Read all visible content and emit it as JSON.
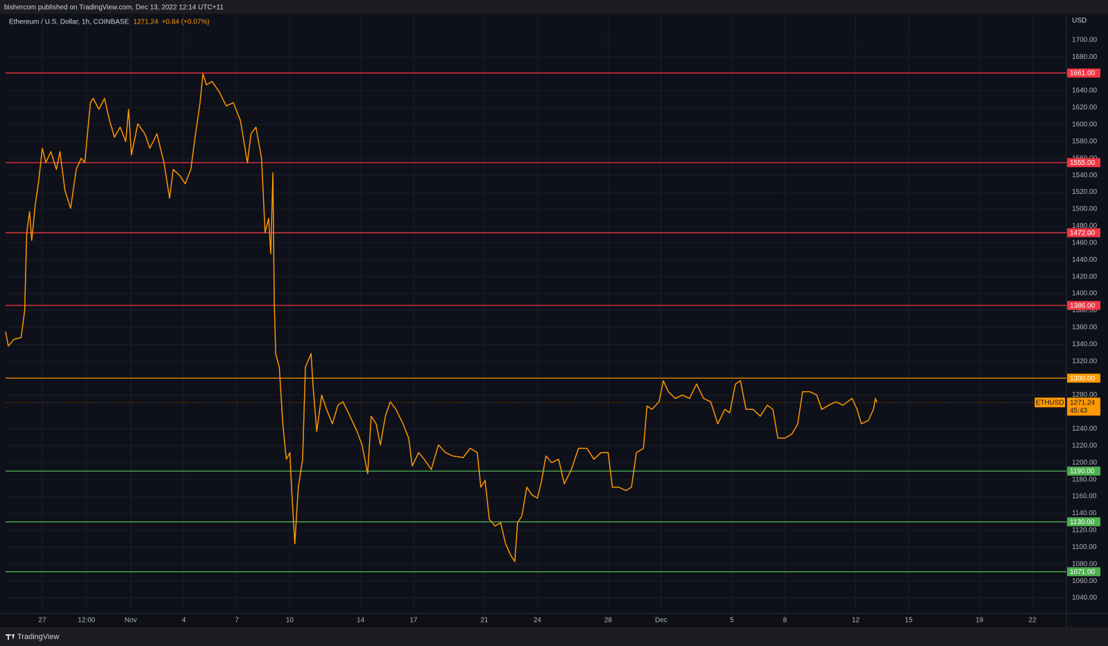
{
  "chart_data": {
    "type": "line",
    "published": "bishercom published on TradingView.com, Dec 13, 2022 12:14 UTC+11",
    "title": "Ethereum / U.S. Dollar, 1h, COINBASE",
    "last": 1271.24,
    "change": "+0.84 (+0.07%)",
    "symbol": "ETHUSD",
    "countdown": "45:43",
    "currency": "USD",
    "brand": "TradingView",
    "grid": true,
    "xlim": [
      -2.08,
      57.92
    ],
    "ylim": [
      1021.6,
      1731
    ],
    "xticks": [
      {
        "value": 0,
        "label": "27"
      },
      {
        "value": 2.5,
        "label": "12:00"
      },
      {
        "value": 5,
        "label": "Nov"
      },
      {
        "value": 8,
        "label": "4"
      },
      {
        "value": 11,
        "label": "7"
      },
      {
        "value": 14,
        "label": "10"
      },
      {
        "value": 18,
        "label": "14"
      },
      {
        "value": 21,
        "label": "17"
      },
      {
        "value": 25,
        "label": "21"
      },
      {
        "value": 28,
        "label": "24"
      },
      {
        "value": 32,
        "label": "28"
      },
      {
        "value": 35,
        "label": "Dec"
      },
      {
        "value": 39,
        "label": "5"
      },
      {
        "value": 42,
        "label": "8"
      },
      {
        "value": 46,
        "label": "12"
      },
      {
        "value": 49,
        "label": "15"
      },
      {
        "value": 53,
        "label": "19"
      },
      {
        "value": 56,
        "label": "22"
      }
    ],
    "yticks": [
      {
        "value": 1700,
        "label": "1700.00"
      },
      {
        "value": 1680,
        "label": "1680.00"
      },
      {
        "value": 1640,
        "label": "1640.00"
      },
      {
        "value": 1620,
        "label": "1620.00"
      },
      {
        "value": 1600,
        "label": "1600.00"
      },
      {
        "value": 1580,
        "label": "1580.00"
      },
      {
        "value": 1560,
        "label": "1560.00"
      },
      {
        "value": 1540,
        "label": "1540.00"
      },
      {
        "value": 1520,
        "label": "1520.00"
      },
      {
        "value": 1500,
        "label": "1500.00"
      },
      {
        "value": 1480,
        "label": "1480.00"
      },
      {
        "value": 1460,
        "label": "1460.00"
      },
      {
        "value": 1440,
        "label": "1440.00"
      },
      {
        "value": 1420,
        "label": "1420.00"
      },
      {
        "value": 1400,
        "label": "1400.00"
      },
      {
        "value": 1380,
        "label": "1380.00"
      },
      {
        "value": 1360,
        "label": "1360.00"
      },
      {
        "value": 1340,
        "label": "1340.00"
      },
      {
        "value": 1320,
        "label": "1320.00"
      },
      {
        "value": 1280,
        "label": "1280.00"
      },
      {
        "value": 1240,
        "label": "1240.00"
      },
      {
        "value": 1220,
        "label": "1220.00"
      },
      {
        "value": 1200,
        "label": "1200.00"
      },
      {
        "value": 1180,
        "label": "1180.00"
      },
      {
        "value": 1160,
        "label": "1160.00"
      },
      {
        "value": 1140,
        "label": "1140.00"
      },
      {
        "value": 1120,
        "label": "1120.00"
      },
      {
        "value": 1100,
        "label": "1100.00"
      },
      {
        "value": 1080,
        "label": "1080.00"
      },
      {
        "value": 1060,
        "label": "1060.00"
      },
      {
        "value": 1040,
        "label": "1040.00"
      }
    ],
    "levels": [
      {
        "value": 1661,
        "label": "1661.00",
        "color": "#f23645"
      },
      {
        "value": 1555,
        "label": "1555.00",
        "color": "#f23645"
      },
      {
        "value": 1472,
        "label": "1472.00",
        "color": "#f23645"
      },
      {
        "value": 1386,
        "label": "1386.00",
        "color": "#f23645"
      },
      {
        "value": 1300,
        "label": "1300.00",
        "color": "#ff9800"
      },
      {
        "value": 1190,
        "label": "1190.00",
        "color": "#4caf50"
      },
      {
        "value": 1130,
        "label": "1130.00",
        "color": "#4caf50"
      },
      {
        "value": 1071,
        "label": "1071.00",
        "color": "#4caf50"
      }
    ],
    "x": [
      -2.08,
      -1.92,
      -1.6,
      -1.2,
      -1,
      -0.88,
      -0.72,
      -0.6,
      -0.4,
      -0.2,
      0,
      0.2,
      0.48,
      0.8,
      1,
      1.28,
      1.6,
      1.92,
      2.2,
      2.4,
      2.72,
      2.88,
      3.2,
      3.52,
      3.8,
      4.08,
      4.4,
      4.72,
      4.88,
      5.04,
      5.4,
      5.8,
      6.08,
      6.48,
      6.88,
      7.2,
      7.4,
      7.8,
      8.08,
      8.4,
      8.64,
      8.92,
      9.08,
      9.28,
      9.6,
      10,
      10.4,
      10.8,
      11.2,
      11.6,
      11.8,
      12.08,
      12.4,
      12.6,
      12.8,
      12.92,
      13.04,
      13.12,
      13.2,
      13.4,
      13.6,
      13.8,
      14,
      14.12,
      14.28,
      14.48,
      14.72,
      14.88,
      15.04,
      15.2,
      15.32,
      15.52,
      15.8,
      16.08,
      16.4,
      16.72,
      17,
      17.4,
      17.8,
      18.08,
      18.4,
      18.6,
      18.88,
      19.12,
      19.4,
      19.68,
      20,
      20.4,
      20.72,
      20.92,
      21.28,
      21.6,
      22,
      22.4,
      22.8,
      23.2,
      23.8,
      24.2,
      24.6,
      24.8,
      25.04,
      25.28,
      25.6,
      25.92,
      26.2,
      26.48,
      26.72,
      26.88,
      27.12,
      27.4,
      27.68,
      28,
      28.24,
      28.48,
      28.8,
      29.2,
      29.52,
      29.92,
      30.32,
      30.8,
      31.2,
      31.6,
      32,
      32.24,
      32.6,
      33,
      33.32,
      33.6,
      34,
      34.2,
      34.48,
      34.88,
      35.12,
      35.4,
      35.8,
      36.2,
      36.6,
      37,
      37.4,
      37.8,
      38.2,
      38.6,
      38.88,
      39.2,
      39.48,
      39.8,
      40.2,
      40.6,
      41,
      41.32,
      41.6,
      42,
      42.4,
      42.72,
      43,
      43.4,
      43.8,
      44.08,
      44.48,
      44.88,
      45.28,
      45.8,
      46.08,
      46.32,
      46.72,
      47,
      47.12,
      47.2
    ],
    "series": [
      {
        "name": "ETHUSD",
        "color": "#ff9800",
        "values": [
          1355,
          1338,
          1346,
          1348,
          1380,
          1472,
          1497,
          1463,
          1505,
          1534,
          1572,
          1555,
          1568,
          1547,
          1568,
          1522,
          1501,
          1547,
          1560,
          1555,
          1626,
          1631,
          1618,
          1631,
          1605,
          1585,
          1597,
          1580,
          1618,
          1564,
          1601,
          1589,
          1572,
          1589,
          1555,
          1513,
          1547,
          1539,
          1530,
          1547,
          1585,
          1626,
          1660,
          1647,
          1651,
          1639,
          1622,
          1626,
          1605,
          1555,
          1589,
          1597,
          1560,
          1472,
          1489,
          1447,
          1543,
          1388,
          1329,
          1313,
          1246,
          1204,
          1212,
          1162,
          1104,
          1171,
          1204,
          1313,
          1321,
          1329,
          1288,
          1237,
          1280,
          1263,
          1246,
          1268,
          1272,
          1255,
          1237,
          1221,
          1187,
          1255,
          1246,
          1221,
          1255,
          1272,
          1263,
          1246,
          1229,
          1196,
          1212,
          1204,
          1192,
          1221,
          1212,
          1208,
          1206,
          1217,
          1212,
          1171,
          1179,
          1133,
          1125,
          1129,
          1104,
          1091,
          1083,
          1129,
          1137,
          1171,
          1162,
          1158,
          1179,
          1208,
          1200,
          1204,
          1175,
          1192,
          1217,
          1217,
          1204,
          1212,
          1212,
          1171,
          1171,
          1167,
          1171,
          1212,
          1217,
          1267,
          1263,
          1272,
          1297,
          1284,
          1276,
          1280,
          1276,
          1293,
          1276,
          1272,
          1246,
          1263,
          1259,
          1293,
          1297,
          1263,
          1263,
          1255,
          1268,
          1263,
          1229,
          1229,
          1234,
          1246,
          1284,
          1284,
          1280,
          1263,
          1268,
          1272,
          1268,
          1276,
          1263,
          1246,
          1250,
          1263,
          1276,
          1271.24
        ]
      }
    ]
  }
}
